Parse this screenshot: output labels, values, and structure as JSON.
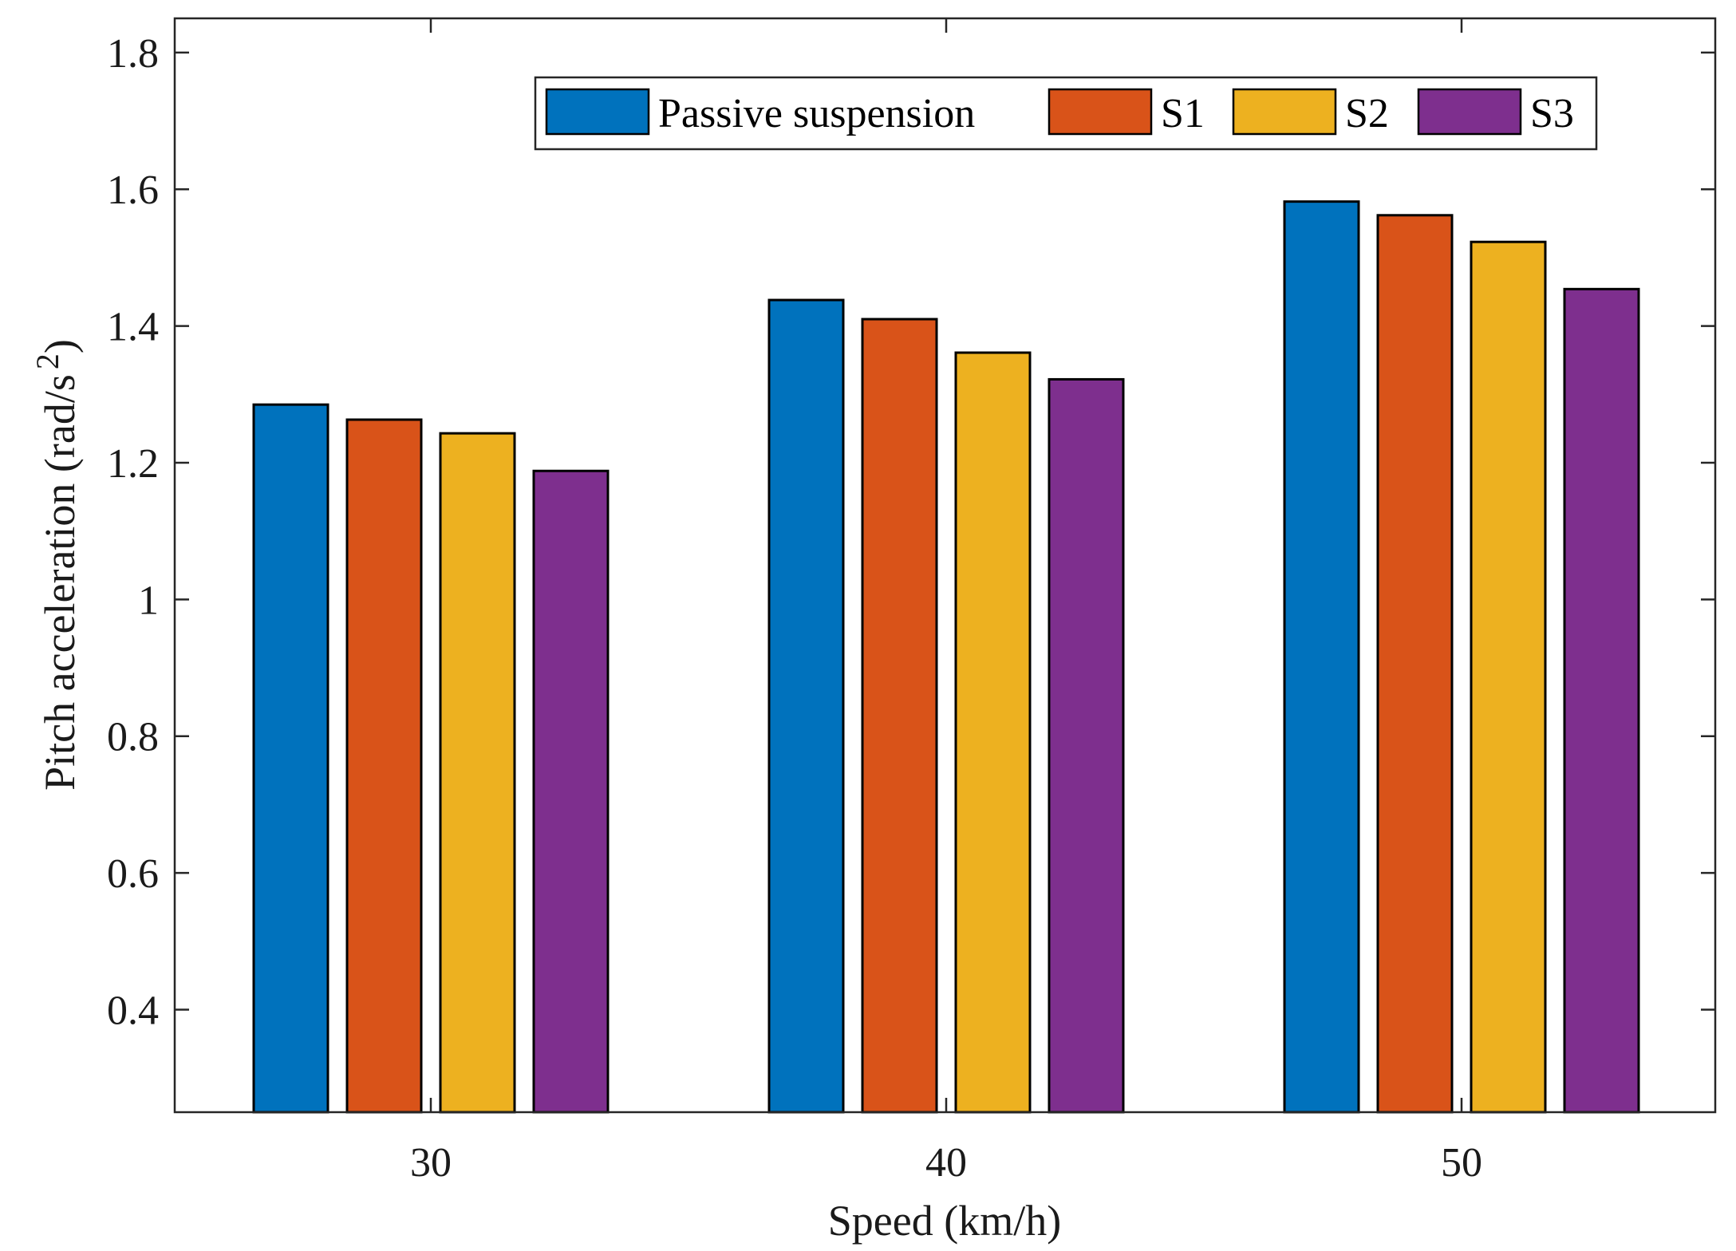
{
  "colors": {
    "passive": "#0072BD",
    "s1": "#D95319",
    "s2": "#EDB120",
    "s3": "#7E2F8E",
    "axis": "#262626",
    "background": "#ffffff"
  },
  "chart_data": {
    "type": "bar",
    "title": "",
    "xlabel": "Speed (km/h)",
    "ylabel": "Pitch acceleration (rad/s",
    "ylabel_superscript": "2",
    "ylabel_close": ")",
    "categories": [
      "30",
      "40",
      "50"
    ],
    "ylim": [
      0.25,
      1.85
    ],
    "yticks": [
      0.4,
      0.6,
      0.8,
      1,
      1.2,
      1.4,
      1.6,
      1.8
    ],
    "ytick_labels": [
      "0.4",
      "0.6",
      "0.8",
      "1",
      "1.2",
      "1.4",
      "1.6",
      "1.8"
    ],
    "grid": false,
    "legend_position": "top-right",
    "series": [
      {
        "name": "Passive suspension",
        "color_key": "passive",
        "values": [
          1.285,
          1.438,
          1.582
        ]
      },
      {
        "name": "S1",
        "color_key": "s1",
        "values": [
          1.263,
          1.41,
          1.562
        ]
      },
      {
        "name": "S2",
        "color_key": "s2",
        "values": [
          1.243,
          1.361,
          1.523
        ]
      },
      {
        "name": "S3",
        "color_key": "s3",
        "values": [
          1.188,
          1.322,
          1.454
        ]
      }
    ]
  }
}
